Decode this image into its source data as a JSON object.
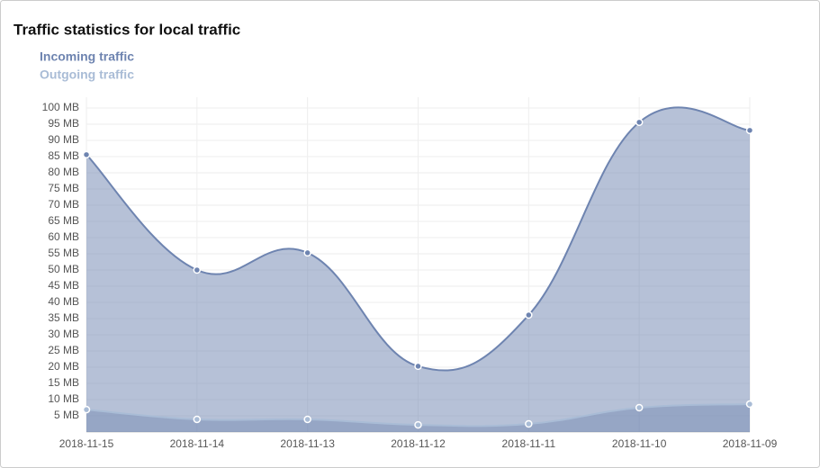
{
  "chart_data": {
    "type": "area",
    "title": "Traffic statistics for local traffic",
    "categories": [
      "2018-11-15",
      "2018-11-14",
      "2018-11-13",
      "2018-11-12",
      "2018-11-11",
      "2018-11-10",
      "2018-11-09"
    ],
    "series": [
      {
        "name": "Incoming traffic",
        "color": "#6e84b0",
        "values": [
          85.6,
          50,
          55.3,
          20.3,
          36.1,
          95.6,
          93.1
        ]
      },
      {
        "name": "Outgoing traffic",
        "color": "#a9bcd6",
        "values": [
          6.9,
          3.9,
          3.9,
          2.2,
          2.5,
          7.5,
          8.6
        ]
      }
    ],
    "ylim": [
      0,
      100
    ],
    "yticks": [
      {
        "value": 5,
        "label": "5 MB"
      },
      {
        "value": 10,
        "label": "10 MB"
      },
      {
        "value": 15,
        "label": "15 MB"
      },
      {
        "value": 20,
        "label": "20 MB"
      },
      {
        "value": 25,
        "label": "25 MB"
      },
      {
        "value": 30,
        "label": "30 MB"
      },
      {
        "value": 35,
        "label": "35 MB"
      },
      {
        "value": 40,
        "label": "40 MB"
      },
      {
        "value": 45,
        "label": "45 MB"
      },
      {
        "value": 50,
        "label": "50 MB"
      },
      {
        "value": 55,
        "label": "55 MB"
      },
      {
        "value": 60,
        "label": "60 MB"
      },
      {
        "value": 65,
        "label": "65 MB"
      },
      {
        "value": 70,
        "label": "70 MB"
      },
      {
        "value": 75,
        "label": "75 MB"
      },
      {
        "value": 80,
        "label": "80 MB"
      },
      {
        "value": 85,
        "label": "85 MB"
      },
      {
        "value": 90,
        "label": "90 MB"
      },
      {
        "value": 95,
        "label": "95 MB"
      },
      {
        "value": 100,
        "label": "100 MB"
      }
    ],
    "grid": true
  }
}
